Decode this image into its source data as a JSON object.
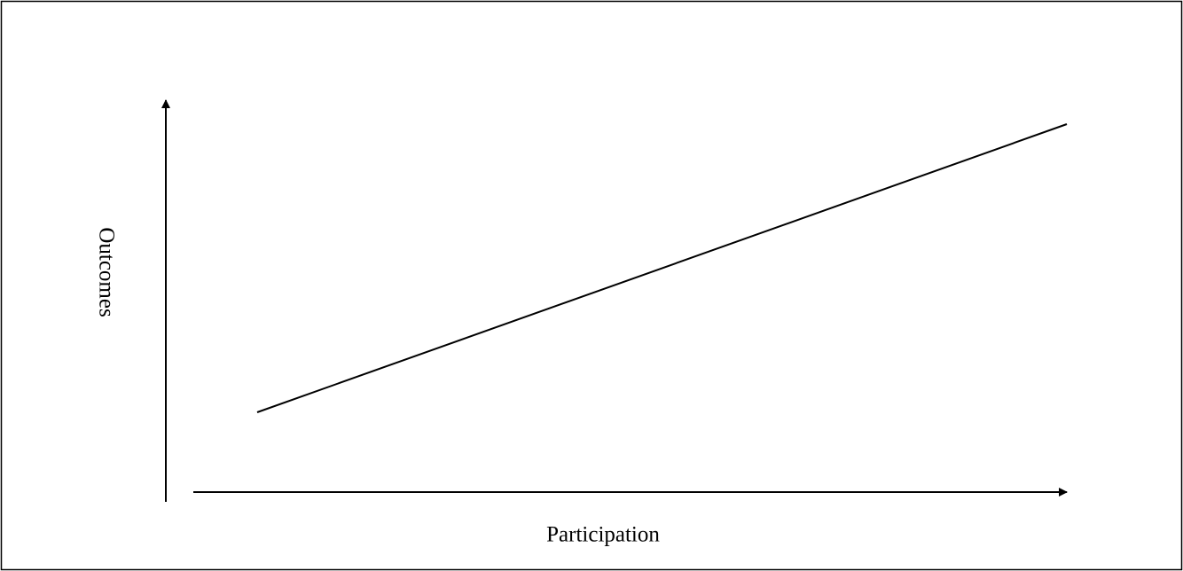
{
  "diagram": {
    "x_axis_label": "Participation",
    "y_axis_label": "Outcomes"
  }
}
